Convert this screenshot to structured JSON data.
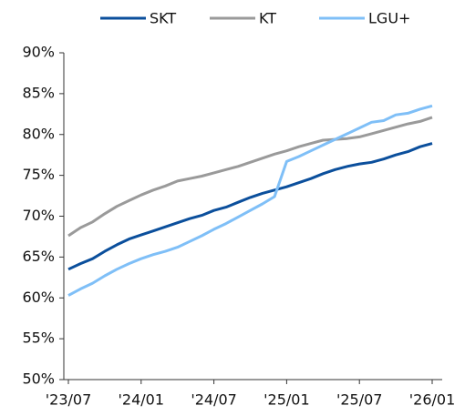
{
  "chart_data": {
    "type": "line",
    "categories": [
      "'23/07",
      null,
      null,
      null,
      null,
      null,
      "'24/01",
      null,
      null,
      null,
      null,
      null,
      "'24/07",
      null,
      null,
      null,
      null,
      null,
      "'25/01",
      null,
      null,
      null,
      null,
      null,
      "'25/07",
      null,
      null,
      null,
      null,
      null,
      "'26/01"
    ],
    "series": [
      {
        "name": "SKT",
        "color": "#0b4f9c",
        "values": [
          63.5,
          64.2,
          64.8,
          65.7,
          66.5,
          67.2,
          67.7,
          68.2,
          68.7,
          69.2,
          69.7,
          70.1,
          70.7,
          71.1,
          71.7,
          72.3,
          72.8,
          73.2,
          73.6,
          74.1,
          74.6,
          75.2,
          75.7,
          76.1,
          76.4,
          76.6,
          77.0,
          77.5,
          77.9,
          78.5,
          78.9
        ]
      },
      {
        "name": "KT",
        "color": "#9a9a9a",
        "values": [
          67.6,
          68.6,
          69.3,
          70.3,
          71.2,
          71.9,
          72.6,
          73.2,
          73.7,
          74.3,
          74.6,
          74.9,
          75.3,
          75.7,
          76.1,
          76.6,
          77.1,
          77.6,
          78.0,
          78.5,
          78.9,
          79.3,
          79.4,
          79.5,
          79.7,
          80.1,
          80.5,
          80.9,
          81.3,
          81.6,
          82.1
        ]
      },
      {
        "name": "LGU+",
        "color": "#7fbff7",
        "values": [
          60.3,
          61.1,
          61.8,
          62.7,
          63.5,
          64.2,
          64.8,
          65.3,
          65.7,
          66.2,
          66.9,
          67.6,
          68.4,
          69.1,
          69.9,
          70.7,
          71.5,
          72.4,
          76.7,
          77.3,
          78.0,
          78.7,
          79.4,
          80.1,
          80.8,
          81.5,
          81.7,
          82.4,
          82.6,
          83.1,
          83.5
        ]
      }
    ],
    "ylim": [
      50,
      90
    ],
    "yticks": [
      {
        "value": 50,
        "label": "50%"
      },
      {
        "value": 55,
        "label": "55%"
      },
      {
        "value": 60,
        "label": "60%"
      },
      {
        "value": 65,
        "label": "65%"
      },
      {
        "value": 70,
        "label": "70%"
      },
      {
        "value": 75,
        "label": "75%"
      },
      {
        "value": 80,
        "label": "80%"
      },
      {
        "value": 85,
        "label": "85%"
      },
      {
        "value": 90,
        "label": "90%"
      }
    ],
    "legend": "top"
  }
}
